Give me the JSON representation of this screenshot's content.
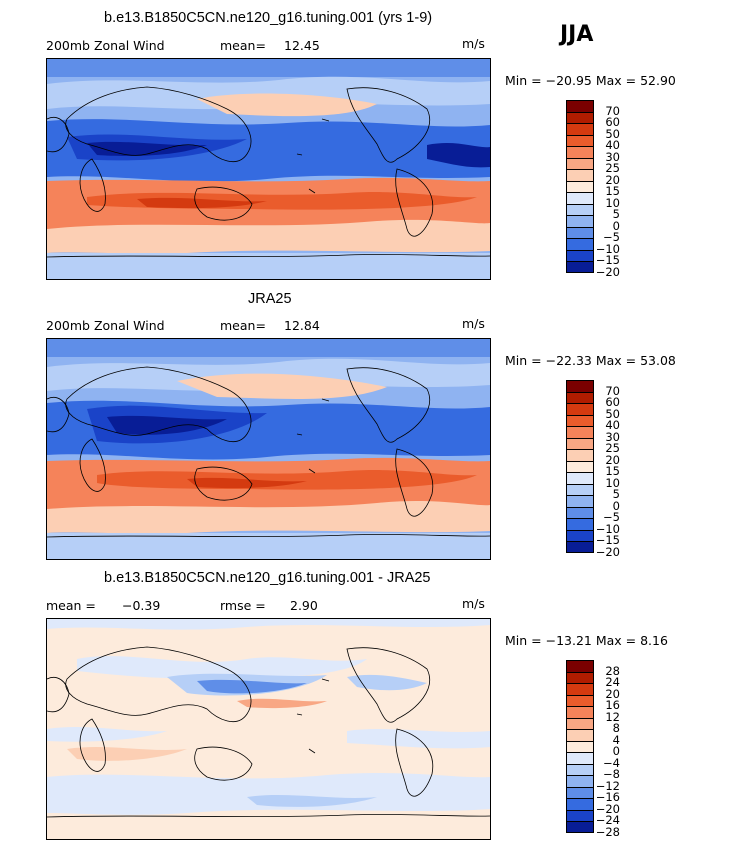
{
  "season": "JJA",
  "panels": [
    {
      "title": "b.e13.B1850C5CN.ne120_g16.tuning.001 (yrs 1-9)",
      "left_label": "200mb Zonal Wind",
      "stat_label": "mean=",
      "stat_value": "12.45",
      "units": "m/s",
      "min_max": "Min = −20.95 Max =  52.90",
      "colorbar": [
        "70",
        "60",
        "50",
        "40",
        "30",
        "25",
        "20",
        "15",
        "10",
        "5",
        "0",
        "−5",
        "−10",
        "−15",
        "−20"
      ],
      "colors": [
        "#7a0000",
        "#b01c00",
        "#d43a10",
        "#ea5c2c",
        "#f5835a",
        "#f8a784",
        "#fccfb4",
        "#fdebdc",
        "#dfe9fb",
        "#b6cff7",
        "#8fb3f1",
        "#5f8ee8",
        "#356be0",
        "#1a43c8",
        "#081d96"
      ]
    },
    {
      "title": "JRA25",
      "left_label": "200mb Zonal Wind",
      "stat_label": "mean=",
      "stat_value": "12.84",
      "units": "m/s",
      "min_max": "Min = −22.33 Max =  53.08",
      "colorbar": [
        "70",
        "60",
        "50",
        "40",
        "30",
        "25",
        "20",
        "15",
        "10",
        "5",
        "0",
        "−5",
        "−10",
        "−15",
        "−20"
      ],
      "colors": [
        "#7a0000",
        "#b01c00",
        "#d43a10",
        "#ea5c2c",
        "#f5835a",
        "#f8a784",
        "#fccfb4",
        "#fdebdc",
        "#dfe9fb",
        "#b6cff7",
        "#8fb3f1",
        "#5f8ee8",
        "#356be0",
        "#1a43c8",
        "#081d96"
      ]
    },
    {
      "title": "b.e13.B1850C5CN.ne120_g16.tuning.001 - JRA25",
      "left_label": "mean =",
      "left_value": "−0.39",
      "stat_label": "rmse =",
      "stat_value": "2.90",
      "units": "m/s",
      "min_max": "Min = −13.21 Max =   8.16",
      "colorbar": [
        "28",
        "24",
        "20",
        "16",
        "12",
        "8",
        "4",
        "0",
        "−4",
        "−8",
        "−12",
        "−16",
        "−20",
        "−24",
        "−28"
      ],
      "colors": [
        "#7a0000",
        "#b01c00",
        "#d43a10",
        "#ea5c2c",
        "#f5835a",
        "#f8a784",
        "#fccfb4",
        "#fdebdc",
        "#dfe9fb",
        "#b6cff7",
        "#8fb3f1",
        "#5f8ee8",
        "#356be0",
        "#1a43c8",
        "#081d96"
      ]
    }
  ]
}
